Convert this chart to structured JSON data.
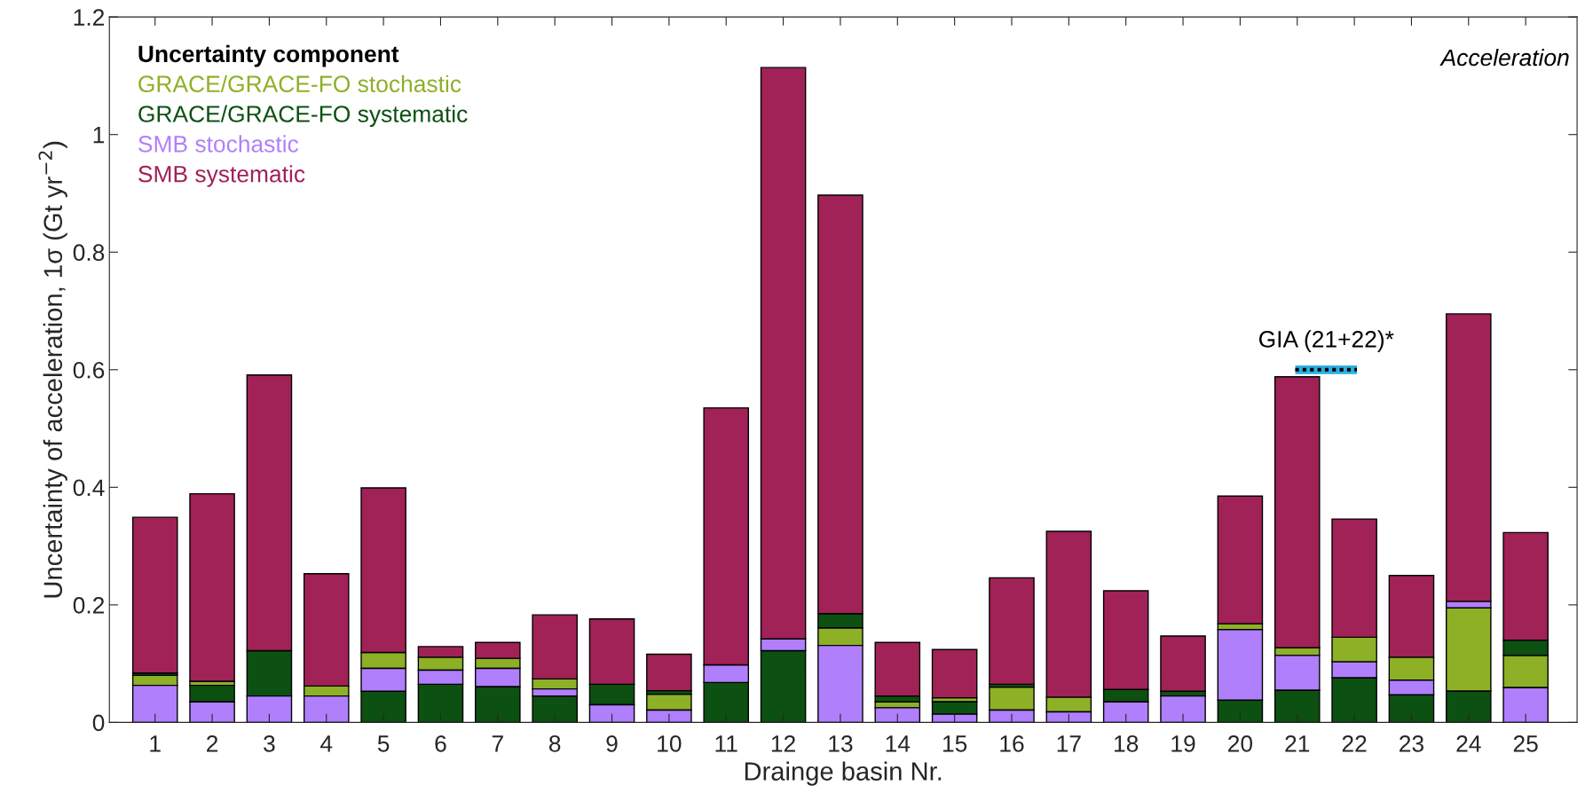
{
  "chart_data": {
    "type": "bar",
    "categories": [
      "1",
      "2",
      "3",
      "4",
      "5",
      "6",
      "7",
      "8",
      "9",
      "10",
      "11",
      "12",
      "13",
      "14",
      "15",
      "16",
      "17",
      "18",
      "19",
      "20",
      "21",
      "22",
      "23",
      "24",
      "25"
    ],
    "xlabel": "Drainge basin Nr.",
    "ylabel": "Uncertainty of acceleration, 1σ (Gt yr$^{−2}$)",
    "legend_title": "Uncertainty component",
    "legend": "top left",
    "series": [
      {
        "name": "GRACE/GRACE-FO stochastic",
        "color": "#8db027",
        "values": [
          0.017,
          0.007,
          null,
          0.017,
          0.027,
          0.022,
          0.017,
          0.017,
          null,
          0.027,
          null,
          null,
          0.03,
          0.01,
          0.007,
          0.039,
          0.025,
          null,
          null,
          0.01,
          0.013,
          0.042,
          0.039,
          0.142,
          0.055
        ],
        "base": [
          0.063,
          0.063,
          null,
          0.045,
          0.092,
          0.089,
          0.092,
          0.057,
          null,
          0.021,
          null,
          null,
          0.131,
          0.025,
          0.035,
          0.021,
          0.018,
          null,
          null,
          0.158,
          0.114,
          0.103,
          0.072,
          0.053,
          0.059
        ]
      },
      {
        "name": "GRACE/GRACE-FO systematic",
        "color": "#0c5012",
        "values": [
          0.004,
          0.028,
          0.077,
          null,
          0.053,
          0.065,
          0.061,
          0.045,
          0.035,
          0.006,
          0.068,
          0.122,
          0.024,
          0.01,
          0.021,
          0.005,
          null,
          0.021,
          0.008,
          0.038,
          0.055,
          0.076,
          0.047,
          0.053,
          0.026
        ],
        "base": [
          0.08,
          0.035,
          0.045,
          null,
          0,
          0,
          0,
          0,
          0.03,
          0.048,
          0,
          0,
          0.161,
          0.035,
          0.014,
          0.06,
          null,
          0.035,
          0.045,
          0,
          0,
          0,
          0,
          0,
          0.114
        ]
      },
      {
        "name": "SMB stochastic",
        "color": "#b07ffc",
        "values": [
          0.063,
          0.035,
          0.045,
          0.045,
          0.039,
          0.024,
          0.031,
          0.012,
          0.03,
          0.021,
          0.03,
          0.02,
          0.131,
          0.025,
          0.014,
          0.021,
          0.018,
          0.035,
          0.045,
          0.12,
          0.059,
          0.027,
          0.025,
          0.011,
          0.059
        ],
        "base": [
          0,
          0,
          0,
          0,
          0.053,
          0.065,
          0.061,
          0.045,
          0,
          0,
          0.068,
          0.122,
          0,
          0,
          0,
          0,
          0,
          0,
          0,
          0.038,
          0.055,
          0.076,
          0.047,
          0.195,
          0
        ]
      },
      {
        "name": "SMB systematic",
        "color": "#a02257",
        "values": [
          0.265,
          0.319,
          0.469,
          0.191,
          0.28,
          0.018,
          0.027,
          0.109,
          0.111,
          0.062,
          0.437,
          0.972,
          0.712,
          0.091,
          0.082,
          0.181,
          0.282,
          0.168,
          0.094,
          0.217,
          0.461,
          0.201,
          0.139,
          0.489,
          0.183
        ],
        "base": [
          0.084,
          0.07,
          0.122,
          0.062,
          0.119,
          0.111,
          0.109,
          0.074,
          0.065,
          0.054,
          0.098,
          0.142,
          0.185,
          0.045,
          0.042,
          0.065,
          0.043,
          0.056,
          0.053,
          0.168,
          0.127,
          0.145,
          0.111,
          0.206,
          0.14
        ]
      }
    ],
    "ylim": [
      0,
      1.2
    ],
    "yticks": [
      0,
      0.2,
      0.4,
      0.6,
      0.8,
      1,
      1.2
    ],
    "grid": false,
    "annotations": [
      {
        "text": "Acceleration"
      },
      "GIA (21+22)*"
    ]
  }
}
